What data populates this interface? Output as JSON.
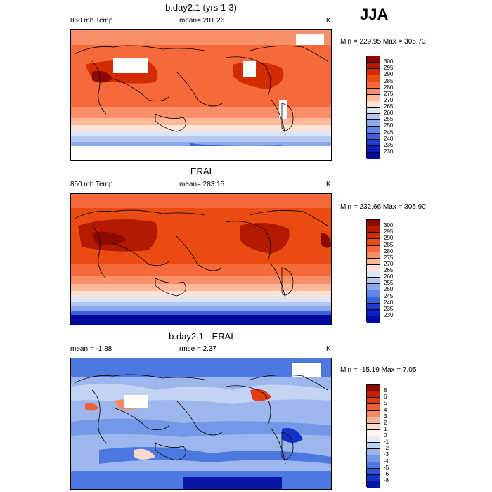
{
  "season": "JJA",
  "panels": [
    {
      "title": "b.day2.1 (yrs 1-3)",
      "left_label": "850 mb Temp",
      "center_label": "mean= 281.26",
      "right_label": "K",
      "minmax": "Min = 229.95 Max = 305.73",
      "colorbar_labels": [
        "300",
        "295",
        "290",
        "285",
        "280",
        "275",
        "270",
        "265",
        "260",
        "255",
        "250",
        "245",
        "240",
        "235",
        "230"
      ],
      "colorbar_colors": [
        "#8c0a00",
        "#b31a00",
        "#d32c00",
        "#ea4b10",
        "#f6693a",
        "#f98f66",
        "#fbb89b",
        "#fde3d6",
        "#dde6f7",
        "#b5c8f1",
        "#8aa9ec",
        "#5f86e4",
        "#3a63dc",
        "#1c3fd2",
        "#0a1fc0",
        "#000a9e"
      ]
    },
    {
      "title": "ERAI",
      "left_label": "850 mb Temp",
      "center_label": "mean= 283.15",
      "right_label": "K",
      "minmax": "Min = 232.66 Max = 305.90",
      "colorbar_labels": [
        "300",
        "295",
        "290",
        "285",
        "280",
        "275",
        "270",
        "265",
        "260",
        "255",
        "250",
        "245",
        "240",
        "235",
        "230"
      ],
      "colorbar_colors": [
        "#8c0a00",
        "#b31a00",
        "#d32c00",
        "#ea4b10",
        "#f6693a",
        "#f98f66",
        "#fbb89b",
        "#fde3d6",
        "#dde6f7",
        "#b5c8f1",
        "#8aa9ec",
        "#5f86e4",
        "#3a63dc",
        "#1c3fd2",
        "#0a1fc0",
        "#000a9e"
      ]
    },
    {
      "title": "b.day2.1 - ERAI",
      "left_label": "mean =  -1.88",
      "center_label": "rmse =  2.37",
      "right_label": "K",
      "minmax": "Min = -15.19 Max =   7.05",
      "colorbar_labels": [
        "8",
        "6",
        "5",
        "4",
        "3",
        "2",
        "1",
        "0",
        "-1",
        "-2",
        "-3",
        "-4",
        "-5",
        "-6",
        "-8"
      ],
      "colorbar_colors": [
        "#8c0a00",
        "#c41f00",
        "#e33c12",
        "#f0603a",
        "#f58a66",
        "#f9b39a",
        "#fcd9ca",
        "#fff5ef",
        "#e4ecfa",
        "#c2d3f4",
        "#9db7ee",
        "#7398e8",
        "#4d78e0",
        "#2c55d6",
        "#1432c6",
        "#0816a8"
      ]
    }
  ]
}
